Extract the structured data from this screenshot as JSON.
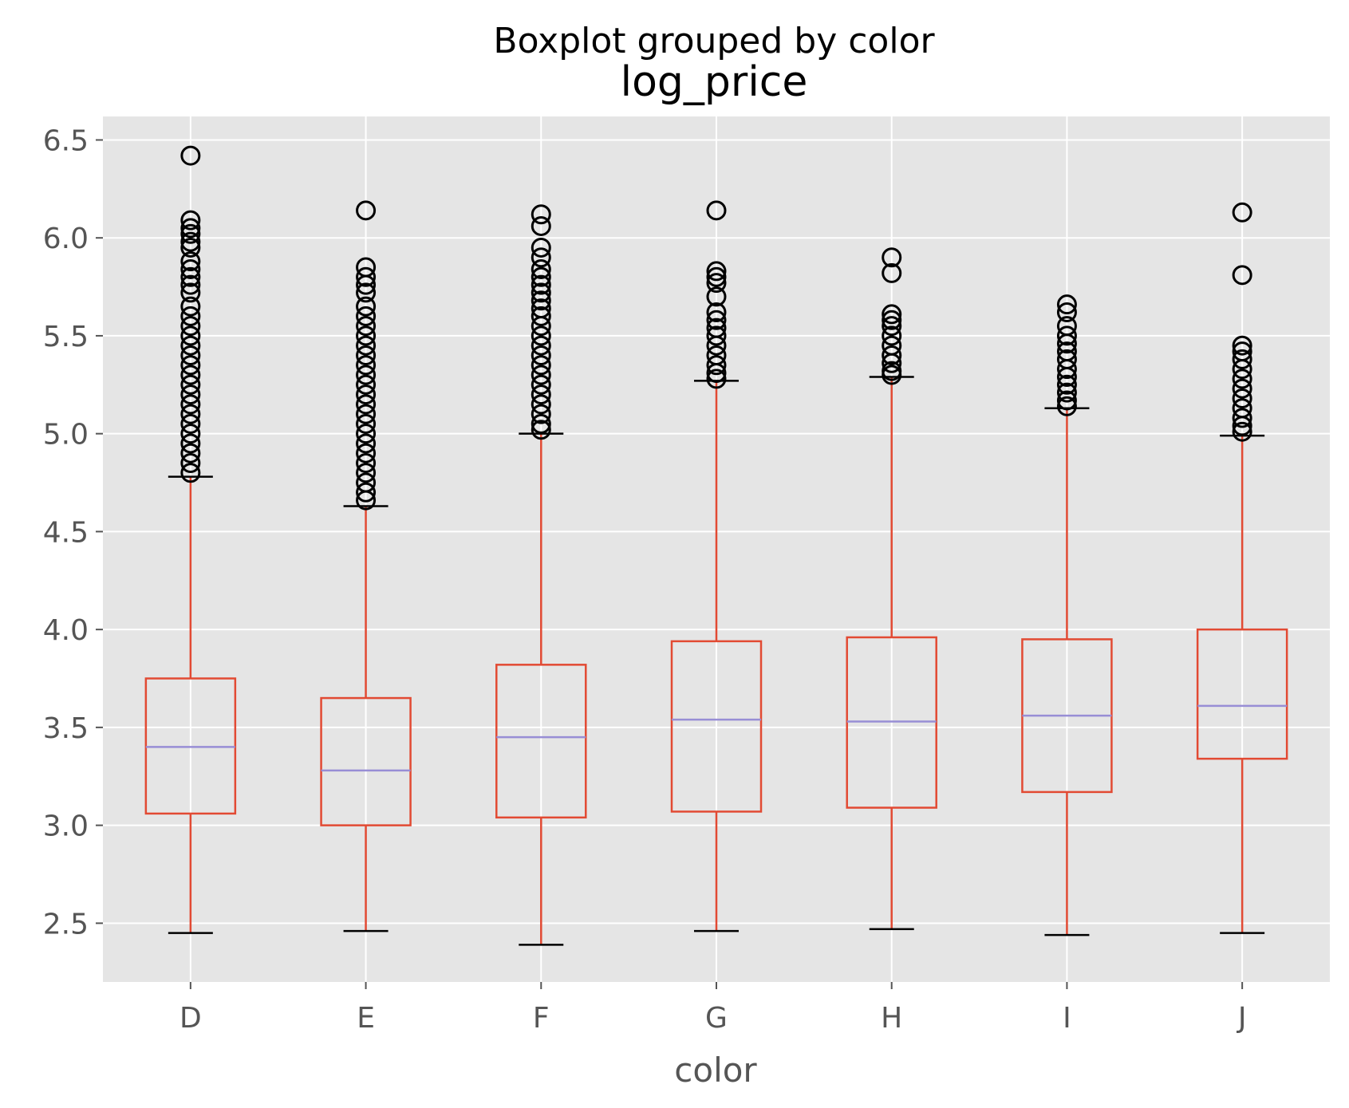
{
  "chart_data": {
    "type": "boxplot",
    "suptitle": "Boxplot grouped by color",
    "title": "log_price",
    "xlabel": "color",
    "ylabel": "",
    "ylim": [
      2.2,
      6.62
    ],
    "yticks": [
      2.5,
      3.0,
      3.5,
      4.0,
      4.5,
      5.0,
      5.5,
      6.0,
      6.5
    ],
    "ytick_labels": [
      "2.5",
      "3.0",
      "3.5",
      "4.0",
      "4.5",
      "5.0",
      "5.5",
      "6.0",
      "6.5"
    ],
    "grid": true,
    "colors": {
      "background": "#e5e5e5",
      "grid": "#ffffff",
      "box": "#e24a33",
      "median": "#988ed5",
      "cap": "#000000",
      "flier": "#000000",
      "tick_label": "#555555"
    },
    "categories": [
      "D",
      "E",
      "F",
      "G",
      "H",
      "I",
      "J"
    ],
    "boxes": [
      {
        "label": "D",
        "whislo": 2.45,
        "q1": 3.06,
        "med": 3.4,
        "q3": 3.75,
        "whishi": 4.78,
        "fliers": [
          6.42,
          6.09,
          6.05,
          6.02,
          5.98,
          5.95,
          5.88,
          5.84,
          5.8,
          5.76,
          5.72,
          5.65,
          5.6,
          5.55,
          5.5,
          5.45,
          5.4,
          5.35,
          5.3,
          5.25,
          5.2,
          5.15,
          5.1,
          5.05,
          5.0,
          4.95,
          4.9,
          4.85,
          4.8
        ]
      },
      {
        "label": "E",
        "whislo": 2.46,
        "q1": 3.0,
        "med": 3.28,
        "q3": 3.65,
        "whishi": 4.63,
        "fliers": [
          6.14,
          5.85,
          5.8,
          5.76,
          5.72,
          5.65,
          5.6,
          5.55,
          5.5,
          5.45,
          5.4,
          5.35,
          5.3,
          5.25,
          5.2,
          5.15,
          5.1,
          5.05,
          5.0,
          4.95,
          4.9,
          4.85,
          4.8,
          4.75,
          4.7,
          4.66
        ]
      },
      {
        "label": "F",
        "whislo": 2.39,
        "q1": 3.04,
        "med": 3.45,
        "q3": 3.82,
        "whishi": 5.0,
        "fliers": [
          6.12,
          6.06,
          5.95,
          5.9,
          5.84,
          5.8,
          5.76,
          5.72,
          5.68,
          5.64,
          5.6,
          5.55,
          5.5,
          5.45,
          5.4,
          5.35,
          5.3,
          5.25,
          5.2,
          5.15,
          5.1,
          5.05,
          5.02
        ]
      },
      {
        "label": "G",
        "whislo": 2.46,
        "q1": 3.07,
        "med": 3.54,
        "q3": 3.94,
        "whishi": 5.27,
        "fliers": [
          6.14,
          5.83,
          5.8,
          5.77,
          5.7,
          5.62,
          5.58,
          5.54,
          5.5,
          5.45,
          5.4,
          5.35,
          5.31,
          5.28
        ]
      },
      {
        "label": "H",
        "whislo": 2.47,
        "q1": 3.09,
        "med": 3.53,
        "q3": 3.96,
        "whishi": 5.29,
        "fliers": [
          5.9,
          5.82,
          5.61,
          5.58,
          5.55,
          5.5,
          5.45,
          5.4,
          5.36,
          5.32,
          5.3
        ]
      },
      {
        "label": "I",
        "whislo": 2.44,
        "q1": 3.17,
        "med": 3.56,
        "q3": 3.95,
        "whishi": 5.13,
        "fliers": [
          5.66,
          5.62,
          5.55,
          5.5,
          5.46,
          5.42,
          5.38,
          5.33,
          5.29,
          5.25,
          5.21,
          5.17,
          5.14
        ]
      },
      {
        "label": "J",
        "whislo": 2.45,
        "q1": 3.34,
        "med": 3.61,
        "q3": 4.0,
        "whishi": 4.99,
        "fliers": [
          6.13,
          5.81,
          5.45,
          5.42,
          5.38,
          5.33,
          5.28,
          5.23,
          5.18,
          5.13,
          5.08,
          5.04,
          5.01
        ]
      }
    ]
  }
}
